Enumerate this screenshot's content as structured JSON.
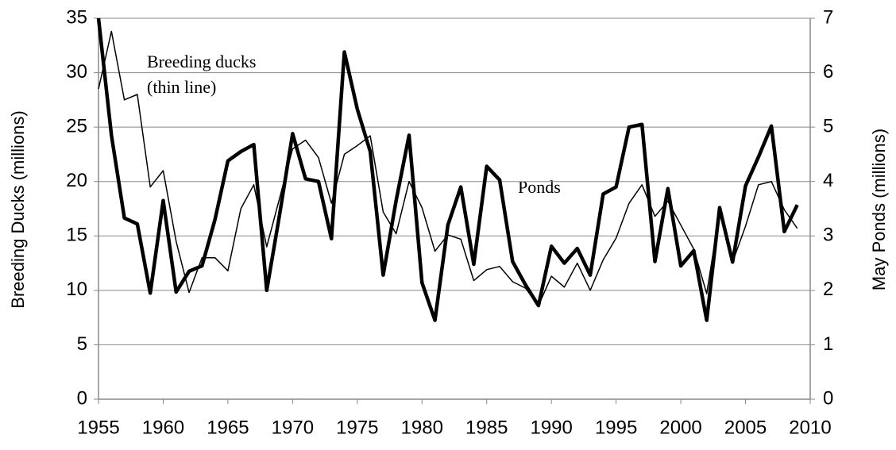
{
  "chart_data": {
    "type": "line",
    "y_label": "Breeding Ducks (millions)",
    "y2_label": "May Ponds (millions)",
    "x": [
      1955,
      1956,
      1957,
      1958,
      1959,
      1960,
      1961,
      1962,
      1963,
      1964,
      1965,
      1966,
      1967,
      1968,
      1969,
      1970,
      1971,
      1972,
      1973,
      1974,
      1975,
      1976,
      1977,
      1978,
      1979,
      1980,
      1981,
      1982,
      1983,
      1984,
      1985,
      1986,
      1987,
      1988,
      1989,
      1990,
      1991,
      1992,
      1993,
      1994,
      1995,
      1996,
      1997,
      1998,
      1999,
      2000,
      2001,
      2002,
      2003,
      2004,
      2005,
      2006,
      2007,
      2008,
      2009
    ],
    "xlim": [
      1955,
      2010
    ],
    "xticks": [
      1955,
      1960,
      1965,
      1970,
      1975,
      1980,
      1985,
      1990,
      1995,
      2000,
      2005,
      2010
    ],
    "ylim": [
      0,
      35
    ],
    "yticks": [
      0,
      5,
      10,
      15,
      20,
      25,
      30,
      35
    ],
    "y2lim": [
      0,
      7
    ],
    "y2ticks": [
      0,
      1,
      2,
      3,
      4,
      5,
      6,
      7
    ],
    "grid": true,
    "series": [
      {
        "name": "Breeding ducks",
        "color": "#000000",
        "width": 1.5,
        "values": [
          28.5,
          33.8,
          27.5,
          28,
          19.5,
          21,
          14.5,
          9.8,
          13,
          13,
          11.8,
          17.5,
          19.7,
          14,
          18.5,
          23,
          23.8,
          22.2,
          18,
          22.5,
          23.3,
          24.2,
          17.2,
          15.2,
          20,
          17.6,
          13.6,
          15.1,
          14.7,
          10.9,
          11.9,
          12.2,
          10.8,
          10.2,
          8.6,
          11.3,
          10.3,
          12.5,
          10,
          12.8,
          14.8,
          18,
          19.7,
          16.8,
          18.2,
          16,
          13.8,
          9.7,
          17.2,
          12.6,
          15.9,
          19.7,
          20,
          17.4,
          15.7
        ]
      },
      {
        "name": "Ponds",
        "color": "#000000",
        "width": 4.5,
        "axis": "y2",
        "values": [
          7,
          4.85,
          3.33,
          3.22,
          1.95,
          3.65,
          1.97,
          2.35,
          2.45,
          3.3,
          4.38,
          4.55,
          4.68,
          2,
          3.4,
          4.88,
          4.05,
          4,
          2.95,
          6.38,
          5.33,
          4.55,
          2.28,
          3.65,
          4.85,
          2.14,
          1.45,
          3.2,
          3.9,
          2.48,
          4.28,
          4.03,
          2.53,
          2.1,
          1.72,
          2.81,
          2.5,
          2.77,
          2.28,
          3.77,
          3.9,
          5,
          5.05,
          2.53,
          3.87,
          2.45,
          2.73,
          1.45,
          3.52,
          2.52,
          3.92,
          4.45,
          5.02,
          3.08,
          3.57
        ]
      }
    ],
    "annotations": [
      "Breeding ducks",
      "(thin line)",
      "Ponds"
    ]
  }
}
